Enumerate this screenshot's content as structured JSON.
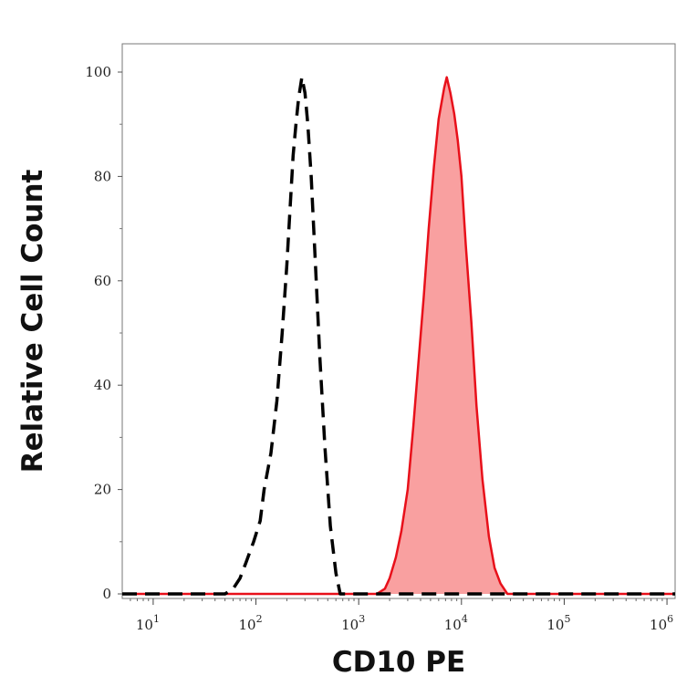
{
  "chart_data": {
    "type": "area",
    "title": "",
    "xlabel": "CD10 PE",
    "ylabel": "Relative Cell Count",
    "x_scale": "log",
    "xlim": [
      5,
      1200000
    ],
    "ylim": [
      0,
      100
    ],
    "x_ticks": [
      {
        "base": "10",
        "exp": "1",
        "value": 10
      },
      {
        "base": "10",
        "exp": "2",
        "value": 100
      },
      {
        "base": "10",
        "exp": "3",
        "value": 1000
      },
      {
        "base": "10",
        "exp": "4",
        "value": 10000
      },
      {
        "base": "10",
        "exp": "5",
        "value": 100000
      },
      {
        "base": "10",
        "exp": "6",
        "value": 1000000
      }
    ],
    "y_ticks": [
      "0",
      "20",
      "40",
      "60",
      "80",
      "100"
    ],
    "grid": false,
    "legend": "none",
    "series": [
      {
        "style": "dashed",
        "color": "#000000",
        "fill": false,
        "points": [
          [
            5,
            0
          ],
          [
            50,
            0
          ],
          [
            60,
            1
          ],
          [
            70,
            3
          ],
          [
            80,
            6
          ],
          [
            95,
            10
          ],
          [
            110,
            14
          ],
          [
            120,
            20
          ],
          [
            140,
            27
          ],
          [
            160,
            37
          ],
          [
            180,
            50
          ],
          [
            200,
            63
          ],
          [
            215,
            74
          ],
          [
            230,
            84
          ],
          [
            245,
            90
          ],
          [
            260,
            95
          ],
          [
            280,
            99
          ],
          [
            300,
            96
          ],
          [
            320,
            90
          ],
          [
            345,
            80
          ],
          [
            380,
            63
          ],
          [
            420,
            45
          ],
          [
            470,
            28
          ],
          [
            530,
            13
          ],
          [
            600,
            4
          ],
          [
            660,
            0
          ],
          [
            1200000,
            0
          ]
        ]
      },
      {
        "style": "solid",
        "color": "#e8101a",
        "fill": true,
        "fill_color": "#f9a0a0",
        "points": [
          [
            5,
            0
          ],
          [
            1500,
            0
          ],
          [
            1800,
            1
          ],
          [
            2000,
            3
          ],
          [
            2300,
            7
          ],
          [
            2600,
            12
          ],
          [
            3000,
            20
          ],
          [
            3400,
            32
          ],
          [
            3800,
            44
          ],
          [
            4300,
            57
          ],
          [
            4800,
            70
          ],
          [
            5400,
            82
          ],
          [
            6000,
            91
          ],
          [
            6800,
            97
          ],
          [
            7200,
            99
          ],
          [
            7800,
            96
          ],
          [
            8500,
            92
          ],
          [
            9200,
            87
          ],
          [
            10000,
            80
          ],
          [
            11000,
            67
          ],
          [
            12500,
            52
          ],
          [
            14000,
            36
          ],
          [
            16000,
            22
          ],
          [
            18500,
            11
          ],
          [
            21000,
            5
          ],
          [
            24000,
            2
          ],
          [
            28000,
            0
          ],
          [
            1200000,
            0
          ]
        ]
      }
    ]
  }
}
